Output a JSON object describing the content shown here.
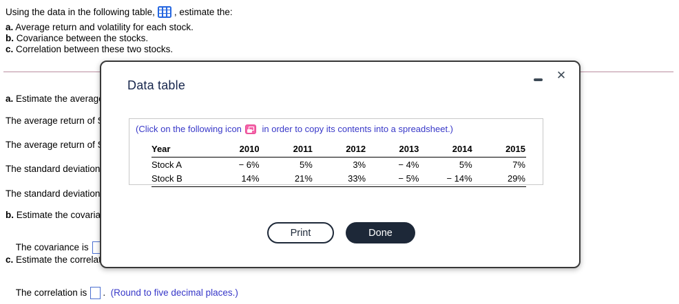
{
  "intro": {
    "before_icon": "Using the data in the following table,",
    "table_icon": "table-grid-icon",
    "after_icon": ", estimate the:",
    "items": [
      {
        "marker": "a.",
        "text": " Average return and volatility for each stock."
      },
      {
        "marker": "b.",
        "text": " Covariance between the stocks."
      },
      {
        "marker": "c.",
        "text": " Correlation between these two stocks."
      }
    ]
  },
  "question": {
    "line_a_marker": "a.",
    "line_a_text": " Estimate the average",
    "avg_return_1": "The average return of St",
    "avg_return_2": "The average return of St",
    "std_dev_1": "The standard deviation o",
    "std_dev_2": "The standard deviation o",
    "line_b_marker": "b.",
    "line_b_text": " Estimate the covarian",
    "covariance_prefix": "The covariance is",
    "covariance_suffix": ".",
    "line_c_marker": "c.",
    "line_c_text": " Estimate the correlati",
    "correlation_prefix": "The correlation is",
    "correlation_suffix": ".",
    "round_note": "(Round to five decimal places.)"
  },
  "modal": {
    "title": "Data table",
    "minimize_icon": "minimize-icon",
    "close_icon": "close-icon",
    "close_glyph": "✕",
    "copy_instruction": {
      "before_icon": "(Click on the following icon",
      "copy_icon": "copy-to-spreadsheet-icon",
      "after_icon": " in order to copy its contents into a spreadsheet.)"
    },
    "table": {
      "headers": [
        "Year",
        "2010",
        "2011",
        "2012",
        "2013",
        "2014",
        "2015"
      ],
      "rows": [
        {
          "label": "Stock A",
          "values": [
            "− 6%",
            "5%",
            "3%",
            "− 4%",
            "5%",
            "7%"
          ]
        },
        {
          "label": "Stock B",
          "values": [
            "14%",
            "21%",
            "33%",
            "− 5%",
            "− 14%",
            "29%"
          ]
        }
      ]
    },
    "buttons": {
      "print": "Print",
      "done": "Done"
    }
  },
  "colors": {
    "divider": "#b98d9f",
    "navy": "#1d2838",
    "link_blue": "#3737c8",
    "pink_icon": "#f564a9",
    "blue_icon": "#2667e0",
    "answer_box_border": "#4a6ed0"
  }
}
